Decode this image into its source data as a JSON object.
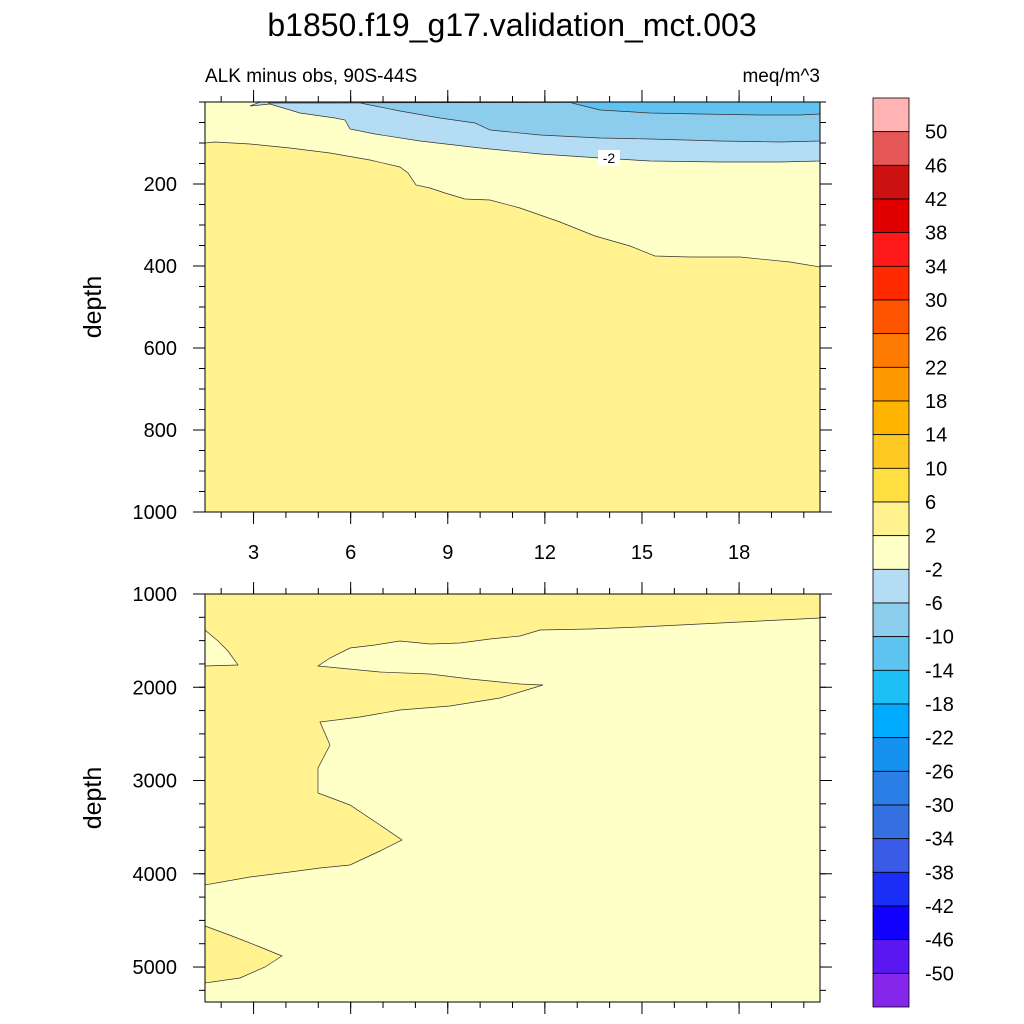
{
  "title": "b1850.f19_g17.validation_mct.003",
  "chart_data": {
    "type": "contour",
    "title": "b1850.f19_g17.validation_mct.003",
    "variable_label": "ALK minus obs, 90S-44S",
    "units": "meq/m^3",
    "x_ticks": [
      "3",
      "6",
      "9",
      "12",
      "15",
      "18"
    ],
    "x_tick_values": [
      3,
      6,
      9,
      12,
      15,
      18
    ],
    "x_range": [
      1.5,
      20.5
    ],
    "contour_label": "-2",
    "colorbar": {
      "levels": [
        "50",
        "46",
        "42",
        "38",
        "34",
        "30",
        "26",
        "22",
        "18",
        "14",
        "10",
        "6",
        "2",
        "-2",
        "-6",
        "-10",
        "-14",
        "-18",
        "-22",
        "-26",
        "-30",
        "-34",
        "-38",
        "-42",
        "-46",
        "-50"
      ],
      "colors": [
        "#ffb3b3",
        "#e65757",
        "#cc1111",
        "#e00000",
        "#ff1a1a",
        "#ff2a00",
        "#ff5500",
        "#ff7a00",
        "#ff9900",
        "#ffb400",
        "#ffc924",
        "#ffe040",
        "#fff28f",
        "#ffffc8",
        "#b4ddf5",
        "#8ccdee",
        "#5ec3f0",
        "#1dbff5",
        "#00aaff",
        "#1591f0",
        "#2a7ee6",
        "#3470e0",
        "#3a5ae8",
        "#1a2ef5",
        "#1200ff",
        "#5a17f2",
        "#8626ec"
      ]
    },
    "panels": [
      {
        "name": "upper",
        "ylabel": "depth",
        "y_ticks": [
          "200",
          "400",
          "600",
          "800",
          "1000"
        ],
        "y_tick_values": [
          200,
          400,
          600,
          800,
          1000
        ],
        "y_range": [
          0,
          1000
        ]
      },
      {
        "name": "lower",
        "ylabel": "depth",
        "y_ticks": [
          "1000",
          "2000",
          "3000",
          "4000",
          "5000"
        ],
        "y_tick_values": [
          1000,
          2000,
          3000,
          4000,
          5000
        ],
        "y_range": [
          1000,
          5375
        ]
      }
    ]
  }
}
